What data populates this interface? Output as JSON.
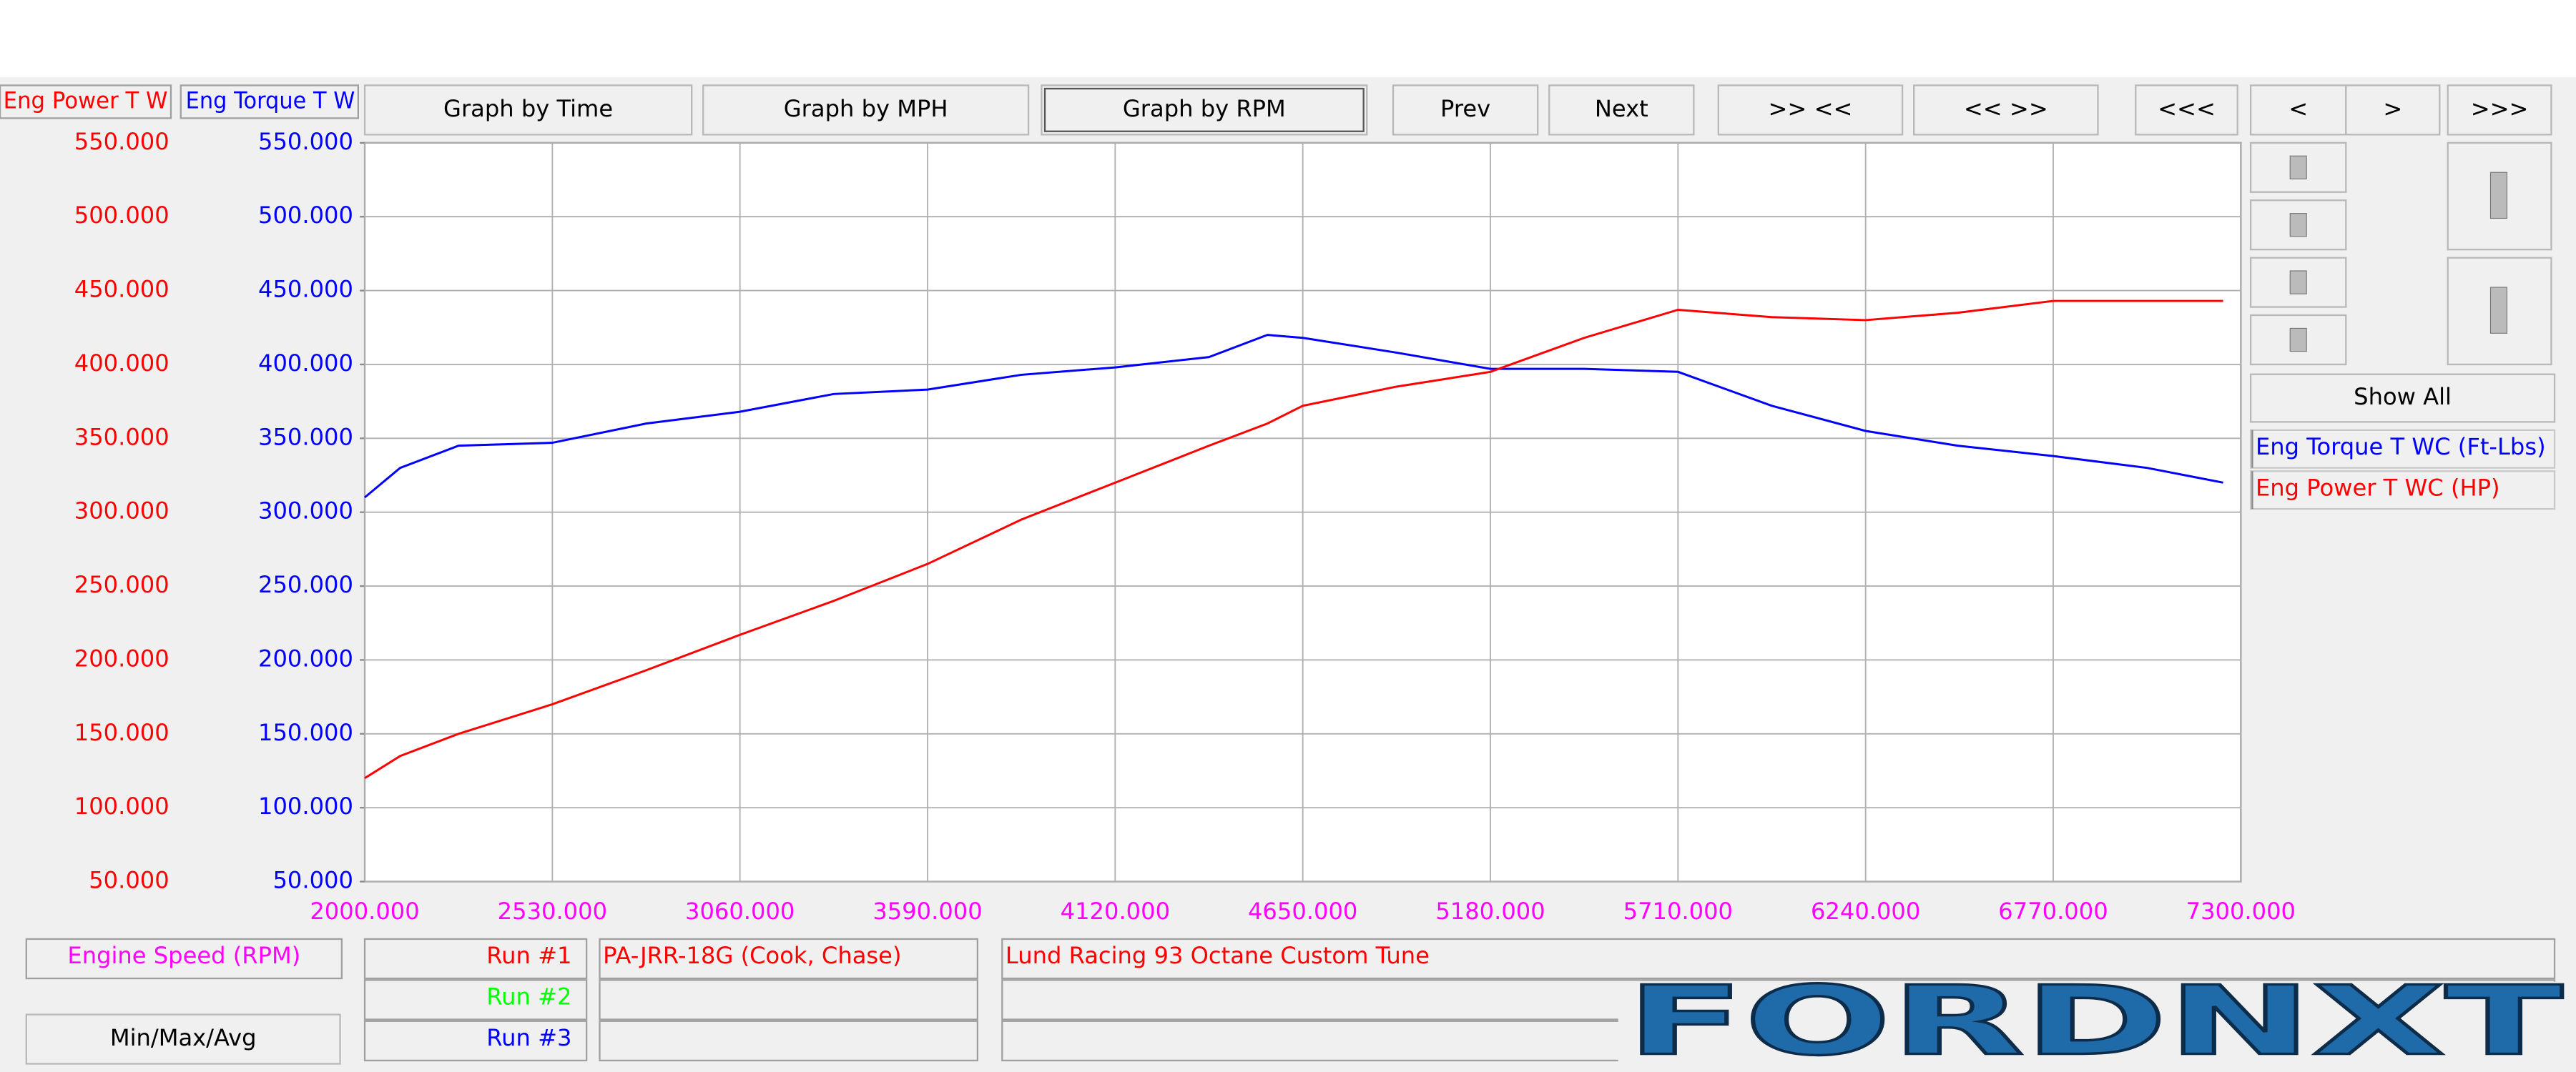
{
  "toolbar": {
    "buttons": [
      "Graph by Time",
      "Graph by MPH",
      "Graph by RPM",
      "Prev",
      "Next",
      ">> <<",
      "<< >>",
      "<<<",
      "<",
      ">",
      ">>>"
    ]
  },
  "chart_data": {
    "type": "line",
    "axis_headers": [
      "Eng Power T W",
      "Eng Torque T W"
    ],
    "x_label": "Engine Speed (RPM)",
    "x": [
      2000,
      2100,
      2265,
      2530,
      2795,
      3060,
      3325,
      3590,
      3855,
      4120,
      4385,
      4550,
      4650,
      4915,
      5180,
      5445,
      5710,
      5975,
      6240,
      6500,
      6770,
      7035,
      7250
    ],
    "xlim": [
      2000,
      7300
    ],
    "xticks": [
      {
        "value": 2000,
        "label": "2000.000"
      },
      {
        "value": 2530,
        "label": "2530.000"
      },
      {
        "value": 3060,
        "label": "3060.000"
      },
      {
        "value": 3590,
        "label": "3590.000"
      },
      {
        "value": 4120,
        "label": "4120.000"
      },
      {
        "value": 4650,
        "label": "4650.000"
      },
      {
        "value": 5180,
        "label": "5180.000"
      },
      {
        "value": 5710,
        "label": "5710.000"
      },
      {
        "value": 6240,
        "label": "6240.000"
      },
      {
        "value": 6770,
        "label": "6770.000"
      },
      {
        "value": 7300,
        "label": "7300.000"
      }
    ],
    "xtick_color": "#ff00ff",
    "ylim": [
      50,
      550
    ],
    "yticks": [
      {
        "value": 550,
        "label": "550.000"
      },
      {
        "value": 500,
        "label": "500.000"
      },
      {
        "value": 450,
        "label": "450.000"
      },
      {
        "value": 400,
        "label": "400.000"
      },
      {
        "value": 350,
        "label": "350.000"
      },
      {
        "value": 300,
        "label": "300.000"
      },
      {
        "value": 250,
        "label": "250.000"
      },
      {
        "value": 200,
        "label": "200.000"
      },
      {
        "value": 150,
        "label": "150.000"
      },
      {
        "value": 100,
        "label": "100.000"
      },
      {
        "value": 50,
        "label": "50.000"
      }
    ],
    "y2lim": [
      50,
      550
    ],
    "y2ticks": [
      {
        "value": 550,
        "label": "550.000"
      },
      {
        "value": 500,
        "label": "500.000"
      },
      {
        "value": 450,
        "label": "450.000"
      },
      {
        "value": 400,
        "label": "400.000"
      },
      {
        "value": 350,
        "label": "350.000"
      },
      {
        "value": 300,
        "label": "300.000"
      },
      {
        "value": 250,
        "label": "250.000"
      },
      {
        "value": 200,
        "label": "200.000"
      },
      {
        "value": 150,
        "label": "150.000"
      },
      {
        "value": 100,
        "label": "100.000"
      },
      {
        "value": 50,
        "label": "50.000"
      }
    ],
    "grid": true,
    "series": [
      {
        "name": "Eng Torque T WC (Ft-Lbs)",
        "color": "#0000ff",
        "axis": "y2",
        "values": [
          310,
          330,
          345,
          347,
          360,
          368,
          380,
          383,
          393,
          398,
          405,
          420,
          418,
          408,
          397,
          397,
          395,
          372,
          355,
          345,
          338,
          330,
          320
        ]
      },
      {
        "name": "Eng Power T WC (HP)",
        "color": "#ff0000",
        "values": [
          120,
          135,
          150,
          170,
          193,
          217,
          240,
          265,
          295,
          320,
          345,
          360,
          372,
          385,
          395,
          418,
          437,
          432,
          430,
          435,
          443,
          443,
          443
        ]
      }
    ]
  },
  "side_panel": {
    "show_all": "Show All"
  },
  "runs": [
    {
      "label": "Run #1",
      "color": "#ff0000",
      "vehicle": "PA-JRR-18G (Cook, Chase)",
      "tune": "Lund Racing 93 Octane Custom Tune"
    },
    {
      "label": "Run #2",
      "color": "#00ff00"
    },
    {
      "label": "Run #3",
      "color": "#0000ff"
    }
  ],
  "min_max_avg": "Min/Max/Avg",
  "logo": "FORDNXT"
}
